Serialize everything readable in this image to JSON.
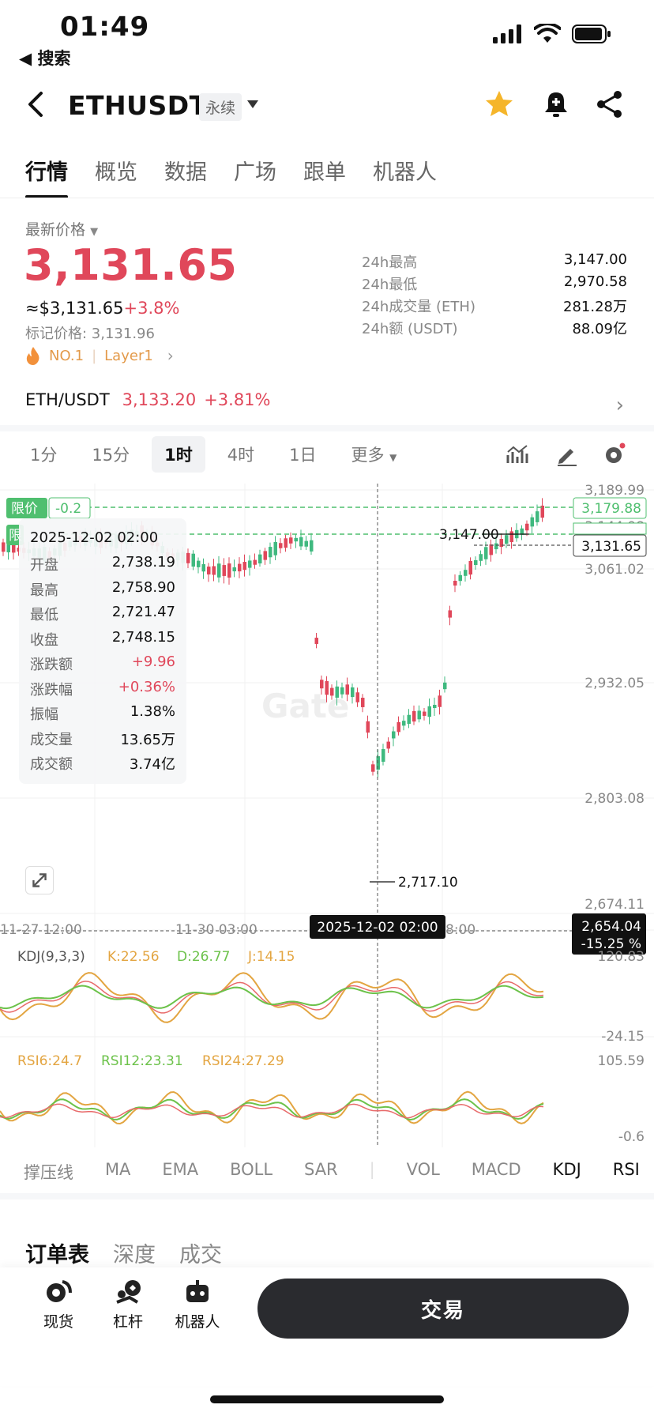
{
  "status": {
    "time": "01:49",
    "back_label": "◀ 搜索"
  },
  "header": {
    "symbol": "ETHUSDT",
    "badge": "永续"
  },
  "tabs": [
    "行情",
    "概览",
    "数据",
    "广场",
    "跟单",
    "机器人"
  ],
  "price": {
    "label": "最新价格",
    "last": "3,131.65",
    "usd": "≈$3,131.65",
    "change": "+3.8%",
    "mark": "标记价格: 3,131.96",
    "tags": [
      "NO.1",
      "Layer1"
    ]
  },
  "stats": [
    {
      "k": "24h最高",
      "v": "3,147.00"
    },
    {
      "k": "24h最低",
      "v": "2,970.58"
    },
    {
      "k": "24h成交量 (ETH)",
      "v": "281.28万"
    },
    {
      "k": "24h额 (USDT)",
      "v": "88.09亿"
    }
  ],
  "pair": {
    "name": "ETH/USDT",
    "price": "3,133.20",
    "change": "+3.81%"
  },
  "timeframes": [
    "1分",
    "15分",
    "1时",
    "4时",
    "1日",
    "更多"
  ],
  "chart": {
    "limit_label": "限价",
    "limit_value": "-0.2",
    "limit_label_2": "限",
    "y_ticks": [
      "3,189.99",
      "3,144.98",
      "3,061.02",
      "2,932.05",
      "2,803.08",
      "2,674.11"
    ],
    "limit_price_tag": "3,179.88",
    "last_price_tag": "3,131.65",
    "high_marker": "3,147.00",
    "low_marker": "2,717.10",
    "cursor_price": "2,654.04",
    "cursor_pct": "-15.25 %",
    "x_ticks": [
      "11-27 12:00",
      "11-30 03:00",
      "8:00"
    ],
    "cursor_date": "2025-12-02 02:00",
    "watermark": "Gate"
  },
  "tooltip": {
    "date": "2025-12-02 02:00",
    "rows": [
      {
        "k": "开盘",
        "v": "2,738.19"
      },
      {
        "k": "最高",
        "v": "2,758.90"
      },
      {
        "k": "最低",
        "v": "2,721.47"
      },
      {
        "k": "收盘",
        "v": "2,748.15"
      },
      {
        "k": "涨跌额",
        "v": "+9.96"
      },
      {
        "k": "涨跌幅",
        "v": "+0.36%"
      },
      {
        "k": "振幅",
        "v": "1.38%"
      },
      {
        "k": "成交量",
        "v": "13.65万"
      },
      {
        "k": "成交额",
        "v": "3.74亿"
      }
    ]
  },
  "kdj": {
    "name": "KDJ(9,3,3)",
    "k": "K:22.56",
    "d": "D:26.77",
    "j": "J:14.15",
    "top": "120.83",
    "bottom": "-24.15"
  },
  "rsi": {
    "r6": "RSI6:24.7",
    "r12": "RSI12:23.31",
    "r24": "RSI24:27.29",
    "top": "105.59",
    "bottom": "-0.6"
  },
  "indicators": [
    "撑压线",
    "MA",
    "EMA",
    "BOLL",
    "SAR",
    "VOL",
    "MACD",
    "KDJ",
    "RSI"
  ],
  "order_tabs": [
    "订单表",
    "深度",
    "成交"
  ],
  "bottom": {
    "spot": "现货",
    "leverage": "杠杆",
    "bot": "机器人",
    "trade": "交易"
  },
  "colors": {
    "up": "#e0475a",
    "down": "#3fb97f",
    "limit_green": "#4fbf6f"
  }
}
